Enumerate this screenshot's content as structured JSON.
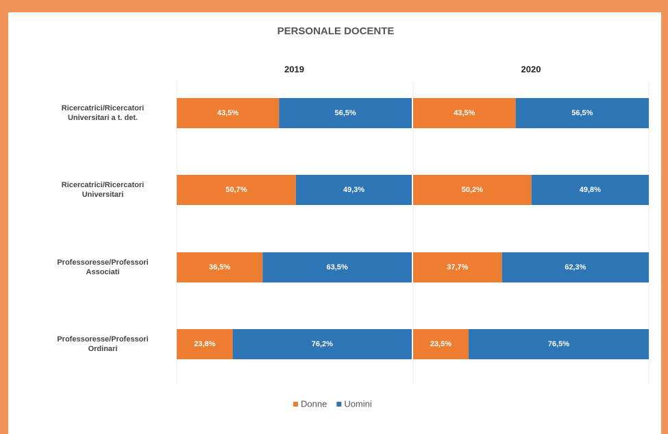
{
  "chart_data": {
    "type": "bar",
    "orientation": "horizontal",
    "stacked": true,
    "title": "PERSONALE DOCENTE",
    "categories": [
      "Ricercatrici/Ricercatori Universitari a t. det.",
      "Ricercatrici/Ricercatori Universitari",
      "Professoresse/Professori Associati",
      "Professoresse/Professori Ordinari"
    ],
    "series": [
      {
        "name": "Donne",
        "color": "#ed7d31"
      },
      {
        "name": "Uomini",
        "color": "#2e75b6"
      }
    ],
    "xlim": [
      0,
      100
    ],
    "panels": [
      {
        "title": "2019",
        "series": [
          {
            "values": [
              43.5,
              50.7,
              36.5,
              23.8
            ],
            "value_labels": [
              "43,5%",
              "50,7%",
              "36,5%",
              "23,8%"
            ]
          },
          {
            "values": [
              56.5,
              49.3,
              63.5,
              76.2
            ],
            "value_labels": [
              "56,5%",
              "49,3%",
              "63,5%",
              "76,2%"
            ]
          }
        ]
      },
      {
        "title": "2020",
        "series": [
          {
            "values": [
              43.5,
              50.2,
              37.7,
              23.5
            ],
            "value_labels": [
              "43,5%",
              "50,2%",
              "37,7%",
              "23,5%"
            ]
          },
          {
            "values": [
              56.5,
              49.8,
              62.3,
              76.5
            ],
            "value_labels": [
              "56,5%",
              "49,8%",
              "62,3%",
              "76,5%"
            ]
          }
        ]
      }
    ]
  }
}
